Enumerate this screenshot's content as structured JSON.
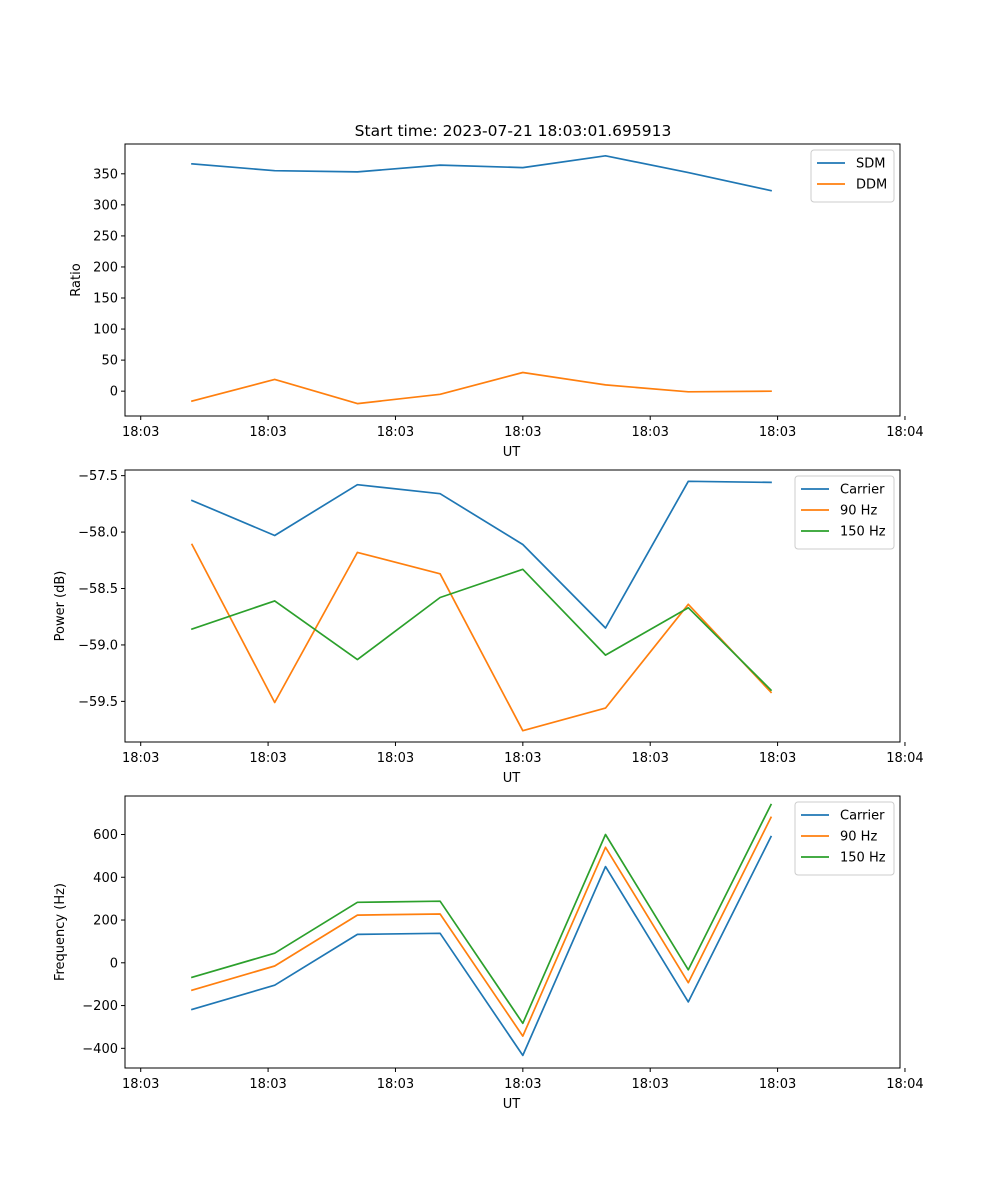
{
  "title": "Start time: 2023-07-21 18:03:01.695913",
  "colors": {
    "series": [
      "#1f77b4",
      "#ff7f0e",
      "#2ca02c"
    ]
  },
  "chart_data": [
    {
      "type": "line",
      "title": "Start time: 2023-07-21 18:03:01.695913",
      "xlabel": "UT",
      "ylabel": "Ratio",
      "x": [
        1,
        2,
        3,
        4,
        5,
        6,
        7,
        8
      ],
      "xlim": [
        0.19,
        9.56
      ],
      "x_ticks": [
        0.38,
        1.92,
        3.46,
        5,
        6.54,
        8.08,
        9.62
      ],
      "x_tick_labels": [
        "18:03",
        "18:03",
        "18:03",
        "18:03",
        "18:03",
        "18:03",
        "18:04"
      ],
      "ylim": [
        -40,
        398
      ],
      "y_ticks": [
        0,
        50,
        100,
        150,
        200,
        250,
        300,
        350
      ],
      "y_tick_labels": [
        "0",
        "50",
        "100",
        "150",
        "200",
        "250",
        "300",
        "350"
      ],
      "legend_position": "top-right",
      "series": [
        {
          "name": "SDM",
          "color": "#1f77b4",
          "values": [
            366,
            355,
            353,
            364,
            360,
            379,
            352,
            323
          ]
        },
        {
          "name": "DDM",
          "color": "#ff7f0e",
          "values": [
            -16,
            19,
            -20,
            -5,
            30,
            10,
            -1,
            0
          ]
        }
      ]
    },
    {
      "type": "line",
      "title": "",
      "xlabel": "UT",
      "ylabel": "Power (dB)",
      "x": [
        1,
        2,
        3,
        4,
        5,
        6,
        7,
        8
      ],
      "xlim": [
        0.19,
        9.56
      ],
      "x_ticks": [
        0.38,
        1.92,
        3.46,
        5,
        6.54,
        8.08,
        9.62
      ],
      "x_tick_labels": [
        "18:03",
        "18:03",
        "18:03",
        "18:03",
        "18:03",
        "18:03",
        "18:04"
      ],
      "ylim": [
        -59.86,
        -57.45
      ],
      "y_ticks": [
        -59.5,
        -59.0,
        -58.5,
        -58.0,
        -57.5
      ],
      "y_tick_labels": [
        "−59.5",
        "−59.0",
        "−58.5",
        "−58.0",
        "−57.5"
      ],
      "legend_position": "top-right",
      "series": [
        {
          "name": "Carrier",
          "color": "#1f77b4",
          "values": [
            -57.72,
            -58.03,
            -57.58,
            -57.66,
            -58.11,
            -58.85,
            -57.55,
            -57.56
          ]
        },
        {
          "name": "90 Hz",
          "color": "#ff7f0e",
          "values": [
            -58.11,
            -59.51,
            -58.18,
            -58.37,
            -59.76,
            -59.56,
            -58.64,
            -59.42
          ]
        },
        {
          "name": "150 Hz",
          "color": "#2ca02c",
          "values": [
            -58.86,
            -58.61,
            -59.13,
            -58.58,
            -58.33,
            -59.09,
            -58.67,
            -59.4
          ]
        }
      ]
    },
    {
      "type": "line",
      "title": "",
      "xlabel": "UT",
      "ylabel": "Frequency (Hz)",
      "x": [
        1,
        2,
        3,
        4,
        5,
        6,
        7,
        8
      ],
      "xlim": [
        0.19,
        9.56
      ],
      "x_ticks": [
        0.38,
        1.92,
        3.46,
        5,
        6.54,
        8.08,
        9.62
      ],
      "x_tick_labels": [
        "18:03",
        "18:03",
        "18:03",
        "18:03",
        "18:03",
        "18:03",
        "18:04"
      ],
      "ylim": [
        -492,
        780
      ],
      "y_ticks": [
        -400,
        -200,
        0,
        200,
        400,
        600
      ],
      "y_tick_labels": [
        "−400",
        "−200",
        "0",
        "200",
        "400",
        "600"
      ],
      "legend_position": "top-right",
      "series": [
        {
          "name": "Carrier",
          "color": "#1f77b4",
          "values": [
            -218,
            -105,
            133,
            138,
            -433,
            450,
            -183,
            590
          ]
        },
        {
          "name": "90 Hz",
          "color": "#ff7f0e",
          "values": [
            -128,
            -15,
            223,
            228,
            -343,
            540,
            -93,
            680
          ]
        },
        {
          "name": "150 Hz",
          "color": "#2ca02c",
          "values": [
            -68,
            45,
            283,
            288,
            -283,
            600,
            -33,
            740
          ]
        }
      ]
    }
  ]
}
